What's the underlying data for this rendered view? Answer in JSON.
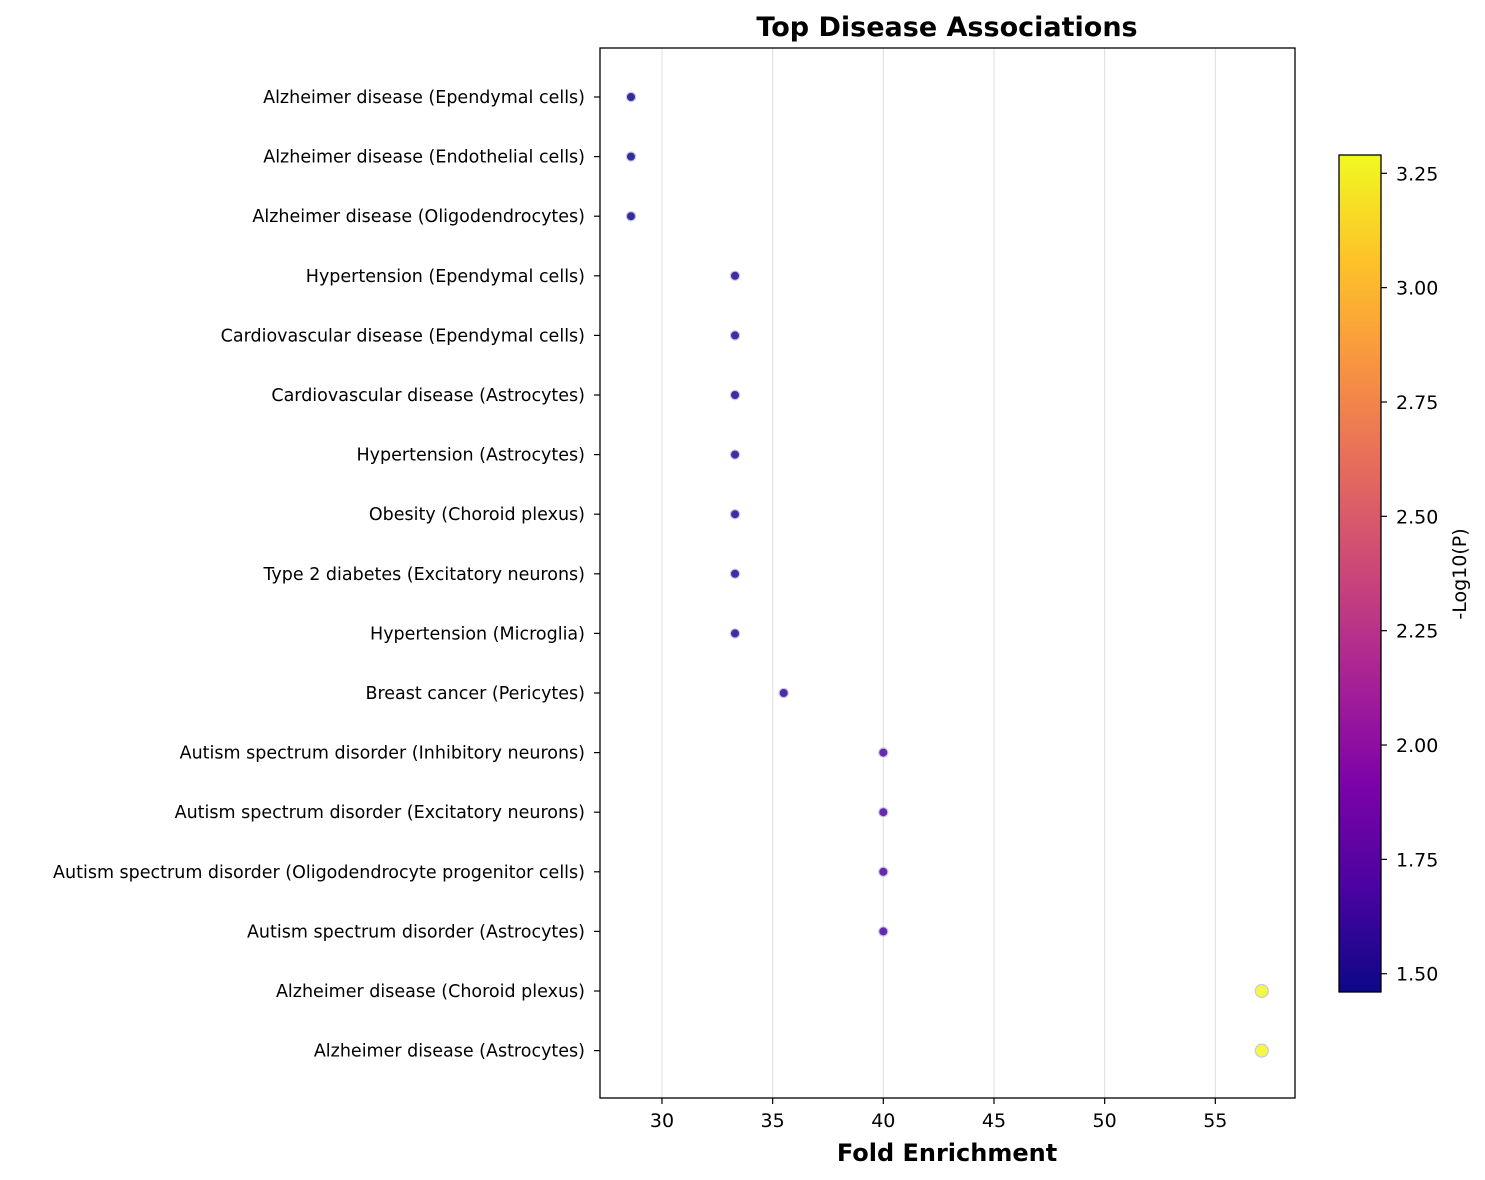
{
  "chart_data": {
    "type": "scatter",
    "title": "Top Disease Associations",
    "xlabel": "Fold Enrichment",
    "ylabel": "",
    "xlim": [
      27.2,
      58.6
    ],
    "xticks": [
      30,
      35,
      40,
      45,
      50,
      55
    ],
    "x_grid": true,
    "colormap": "plasma",
    "colorbar": {
      "label": "-Log10(P)",
      "range": [
        1.46,
        3.29
      ],
      "ticks": [
        1.5,
        1.75,
        2.0,
        2.25,
        2.5,
        2.75,
        3.0,
        3.25
      ],
      "tick_labels": [
        "1.50",
        "1.75",
        "2.00",
        "2.25",
        "2.50",
        "2.75",
        "3.00",
        "3.25"
      ]
    },
    "points": [
      {
        "label": "Alzheimer disease (Ependymal cells)",
        "x": 28.6,
        "color_value": 1.47
      },
      {
        "label": "Alzheimer disease (Endothelial cells)",
        "x": 28.6,
        "color_value": 1.47
      },
      {
        "label": "Alzheimer disease (Oligodendrocytes)",
        "x": 28.6,
        "color_value": 1.47
      },
      {
        "label": "Hypertension (Ependymal cells)",
        "x": 33.3,
        "color_value": 1.55
      },
      {
        "label": "Cardiovascular disease (Ependymal cells)",
        "x": 33.3,
        "color_value": 1.55
      },
      {
        "label": "Cardiovascular disease (Astrocytes)",
        "x": 33.3,
        "color_value": 1.55
      },
      {
        "label": "Hypertension (Astrocytes)",
        "x": 33.3,
        "color_value": 1.55
      },
      {
        "label": "Obesity (Choroid plexus)",
        "x": 33.3,
        "color_value": 1.55
      },
      {
        "label": "Type 2 diabetes (Excitatory neurons)",
        "x": 33.3,
        "color_value": 1.55
      },
      {
        "label": "Hypertension (Microglia)",
        "x": 33.3,
        "color_value": 1.55
      },
      {
        "label": "Breast cancer (Pericytes)",
        "x": 35.5,
        "color_value": 1.6
      },
      {
        "label": "Autism spectrum disorder (Inhibitory neurons)",
        "x": 40.0,
        "color_value": 1.7
      },
      {
        "label": "Autism spectrum disorder (Excitatory neurons)",
        "x": 40.0,
        "color_value": 1.7
      },
      {
        "label": "Autism spectrum disorder (Oligodendrocyte progenitor cells)",
        "x": 40.0,
        "color_value": 1.7
      },
      {
        "label": "Autism spectrum disorder (Astrocytes)",
        "x": 40.0,
        "color_value": 1.7
      },
      {
        "label": "Alzheimer disease (Choroid plexus)",
        "x": 57.1,
        "color_value": 3.28
      },
      {
        "label": "Alzheimer disease (Astrocytes)",
        "x": 57.1,
        "color_value": 3.28
      }
    ]
  }
}
